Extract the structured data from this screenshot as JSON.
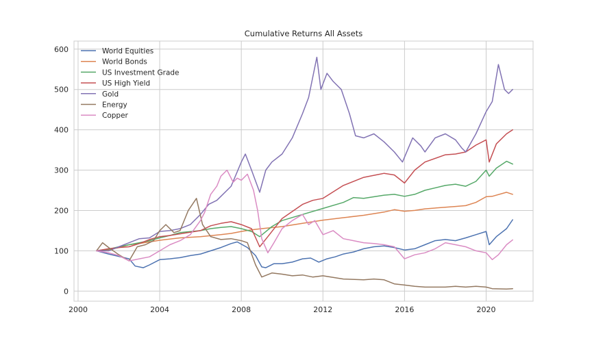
{
  "chart_data": {
    "type": "line",
    "title": "Cumulative Returns All Assets",
    "xlabel": "",
    "ylabel": "",
    "xlim": [
      1999.8,
      2022.3
    ],
    "ylim": [
      -25,
      620
    ],
    "x_ticks": [
      2000,
      2004,
      2008,
      2012,
      2016,
      2020
    ],
    "y_ticks": [
      0,
      100,
      200,
      300,
      400,
      500,
      600
    ],
    "grid": true,
    "legend_position": "upper-left",
    "series": [
      {
        "name": "World Equities",
        "color": "#4c72b0",
        "x": [
          2000.9,
          2001.5,
          2002.0,
          2002.5,
          2002.8,
          2003.2,
          2003.5,
          2004.0,
          2004.5,
          2005.0,
          2005.5,
          2006.0,
          2006.5,
          2007.0,
          2007.5,
          2007.8,
          2008.3,
          2008.7,
          2009.0,
          2009.2,
          2009.6,
          2010.0,
          2010.5,
          2011.0,
          2011.4,
          2011.8,
          2012.2,
          2012.6,
          2013.0,
          2013.5,
          2014.0,
          2014.5,
          2015.0,
          2015.5,
          2016.0,
          2016.5,
          2017.0,
          2017.5,
          2018.0,
          2018.5,
          2019.0,
          2019.5,
          2020.0,
          2020.15,
          2020.5,
          2021.0,
          2021.3
        ],
        "y": [
          100,
          92,
          86,
          80,
          62,
          58,
          65,
          78,
          80,
          83,
          88,
          92,
          100,
          108,
          118,
          122,
          108,
          88,
          60,
          58,
          68,
          68,
          72,
          80,
          82,
          72,
          80,
          85,
          92,
          97,
          105,
          110,
          112,
          108,
          102,
          105,
          115,
          125,
          128,
          125,
          132,
          140,
          148,
          115,
          135,
          155,
          177
        ]
      },
      {
        "name": "World Bonds",
        "color": "#dd8452",
        "x": [
          2000.9,
          2001.5,
          2002.0,
          2002.5,
          2003.0,
          2003.5,
          2004.0,
          2005.0,
          2006.0,
          2007.0,
          2007.5,
          2008.0,
          2008.5,
          2009.0,
          2010.0,
          2011.0,
          2012.0,
          2013.0,
          2014.0,
          2015.0,
          2015.5,
          2016.0,
          2016.5,
          2017.0,
          2018.0,
          2018.5,
          2019.0,
          2019.5,
          2020.0,
          2020.3,
          2021.0,
          2021.3
        ],
        "y": [
          100,
          102,
          108,
          115,
          118,
          122,
          126,
          132,
          135,
          140,
          143,
          148,
          152,
          155,
          160,
          168,
          176,
          182,
          188,
          196,
          202,
          198,
          200,
          204,
          208,
          210,
          212,
          220,
          234,
          235,
          245,
          240
        ]
      },
      {
        "name": "US Investment Grade",
        "color": "#55a868",
        "x": [
          2000.9,
          2001.5,
          2002.0,
          2002.5,
          2003.0,
          2003.5,
          2004.0,
          2004.5,
          2005.0,
          2006.0,
          2006.5,
          2007.0,
          2007.5,
          2008.0,
          2008.5,
          2008.9,
          2009.5,
          2010.0,
          2011.0,
          2012.0,
          2013.0,
          2013.5,
          2014.0,
          2015.0,
          2015.5,
          2016.0,
          2016.5,
          2017.0,
          2018.0,
          2018.5,
          2019.0,
          2019.5,
          2020.0,
          2020.15,
          2020.5,
          2021.0,
          2021.3
        ],
        "y": [
          100,
          104,
          110,
          115,
          120,
          125,
          132,
          138,
          145,
          150,
          155,
          158,
          160,
          155,
          148,
          135,
          160,
          175,
          190,
          205,
          220,
          232,
          230,
          238,
          240,
          235,
          240,
          250,
          262,
          265,
          260,
          272,
          300,
          285,
          305,
          322,
          315
        ]
      },
      {
        "name": "US High Yield",
        "color": "#c44e52",
        "x": [
          2000.9,
          2001.5,
          2002.0,
          2002.5,
          2003.0,
          2003.5,
          2004.0,
          2004.5,
          2005.0,
          2006.0,
          2006.5,
          2007.0,
          2007.5,
          2008.0,
          2008.5,
          2008.9,
          2009.3,
          2010.0,
          2011.0,
          2011.5,
          2012.0,
          2013.0,
          2014.0,
          2015.0,
          2015.5,
          2016.0,
          2016.5,
          2017.0,
          2018.0,
          2018.5,
          2019.0,
          2019.5,
          2020.0,
          2020.15,
          2020.5,
          2021.0,
          2021.3
        ],
        "y": [
          100,
          105,
          108,
          110,
          118,
          128,
          135,
          138,
          142,
          150,
          162,
          168,
          172,
          165,
          155,
          110,
          135,
          180,
          215,
          225,
          230,
          262,
          282,
          292,
          288,
          268,
          300,
          320,
          338,
          340,
          345,
          362,
          375,
          320,
          365,
          390,
          400
        ]
      },
      {
        "name": "Gold",
        "color": "#8172b3",
        "x": [
          2000.9,
          2001.5,
          2002.0,
          2002.5,
          2003.0,
          2003.5,
          2004.0,
          2004.5,
          2005.0,
          2005.5,
          2006.0,
          2006.4,
          2006.8,
          2007.0,
          2007.5,
          2008.0,
          2008.2,
          2008.5,
          2008.9,
          2009.2,
          2009.5,
          2010.0,
          2010.5,
          2011.0,
          2011.3,
          2011.7,
          2011.9,
          2012.2,
          2012.5,
          2012.9,
          2013.3,
          2013.6,
          2014.0,
          2014.5,
          2015.0,
          2015.5,
          2015.9,
          2016.4,
          2016.8,
          2017.0,
          2017.5,
          2018.0,
          2018.5,
          2018.8,
          2019.0,
          2019.5,
          2020.0,
          2020.3,
          2020.6,
          2020.9,
          2021.1,
          2021.3
        ],
        "y": [
          100,
          100,
          110,
          120,
          130,
          132,
          148,
          150,
          155,
          165,
          190,
          215,
          225,
          235,
          260,
          320,
          340,
          300,
          245,
          300,
          320,
          340,
          380,
          440,
          480,
          580,
          500,
          540,
          520,
          500,
          440,
          385,
          380,
          390,
          370,
          345,
          320,
          380,
          360,
          345,
          380,
          390,
          375,
          355,
          345,
          390,
          445,
          470,
          562,
          500,
          490,
          500
        ]
      },
      {
        "name": "Energy",
        "color": "#937860",
        "x": [
          2000.9,
          2001.2,
          2001.5,
          2002.0,
          2002.5,
          2002.9,
          2003.3,
          2003.7,
          2004.0,
          2004.3,
          2004.7,
          2005.0,
          2005.4,
          2005.8,
          2006.1,
          2006.5,
          2007.0,
          2007.5,
          2008.0,
          2008.3,
          2008.7,
          2009.0,
          2009.5,
          2010.0,
          2010.5,
          2011.0,
          2011.5,
          2012.0,
          2013.0,
          2014.0,
          2014.5,
          2015.0,
          2015.5,
          2016.0,
          2016.5,
          2017.0,
          2018.0,
          2018.5,
          2019.0,
          2019.5,
          2020.0,
          2020.3,
          2021.0,
          2021.3
        ],
        "y": [
          100,
          120,
          108,
          90,
          75,
          110,
          115,
          125,
          150,
          165,
          145,
          150,
          200,
          230,
          165,
          135,
          128,
          130,
          125,
          120,
          65,
          35,
          45,
          42,
          38,
          40,
          35,
          38,
          30,
          28,
          30,
          28,
          18,
          15,
          12,
          10,
          10,
          12,
          10,
          12,
          10,
          6,
          5,
          6
        ]
      },
      {
        "name": "Copper",
        "color": "#da8bc3",
        "x": [
          2000.9,
          2001.5,
          2002.0,
          2002.5,
          2003.0,
          2003.5,
          2004.0,
          2004.5,
          2005.0,
          2005.5,
          2006.0,
          2006.2,
          2006.5,
          2006.8,
          2007.0,
          2007.3,
          2007.6,
          2007.8,
          2008.0,
          2008.3,
          2008.6,
          2008.8,
          2009.0,
          2009.3,
          2009.6,
          2010.0,
          2010.5,
          2011.0,
          2011.3,
          2011.6,
          2012.0,
          2012.5,
          2013.0,
          2013.5,
          2014.0,
          2014.5,
          2015.0,
          2015.5,
          2016.0,
          2016.5,
          2017.0,
          2017.5,
          2018.0,
          2018.5,
          2019.0,
          2019.5,
          2020.0,
          2020.3,
          2020.6,
          2021.0,
          2021.3
        ],
        "y": [
          100,
          95,
          88,
          75,
          80,
          85,
          100,
          115,
          125,
          140,
          175,
          195,
          240,
          260,
          285,
          300,
          270,
          280,
          275,
          290,
          250,
          200,
          130,
          95,
          120,
          155,
          175,
          190,
          165,
          175,
          140,
          150,
          130,
          125,
          120,
          118,
          115,
          110,
          80,
          90,
          95,
          105,
          120,
          115,
          110,
          100,
          95,
          78,
          90,
          115,
          127
        ]
      }
    ]
  }
}
